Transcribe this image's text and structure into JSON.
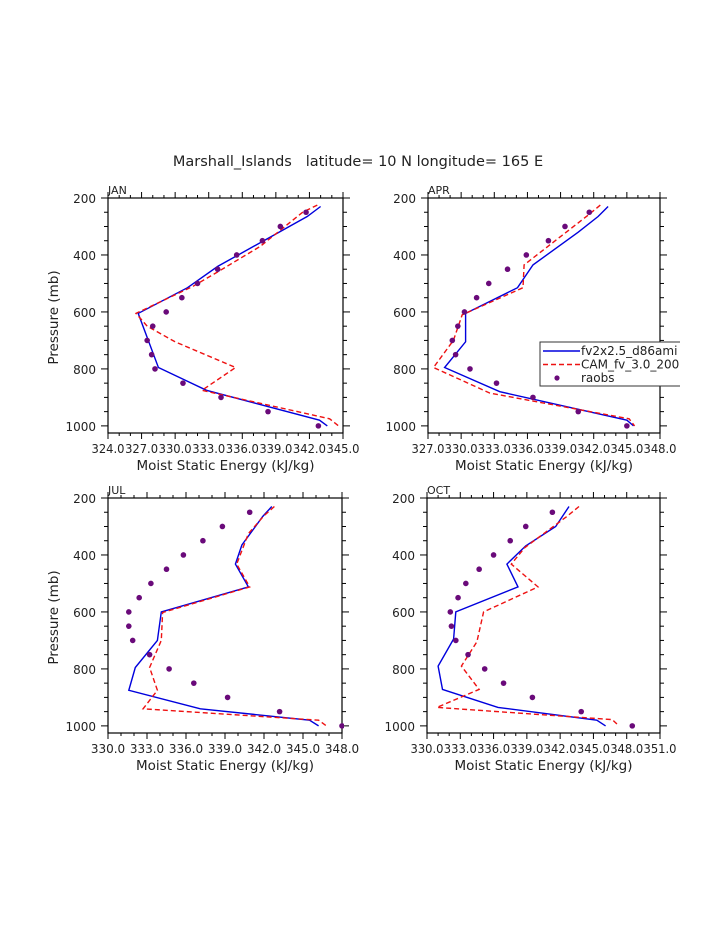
{
  "chart_data": {
    "title": "Marshall_Islands   latitude= 10 N longitude= 165 E",
    "type": "line",
    "legend": {
      "placement": "right-middle of APR panel (clipped)",
      "entries": [
        {
          "name": "fv2x2.5_d86ami",
          "style": "solid-line",
          "color": "#0000dd"
        },
        {
          "name": "CAM_fv_3.0_200",
          "style": "dashed-line",
          "color": "#ee1111"
        },
        {
          "name": "raobs",
          "style": "dot",
          "color": "#6a0a7a"
        }
      ]
    },
    "panels": [
      {
        "label": "JAN",
        "xlabel": "Moist Static Energy (kJ/kg)",
        "ylabel": "Pressure (mb)",
        "xlim": [
          324.0,
          345.0
        ],
        "ylim": [
          200,
          1025
        ],
        "y_inverted": true,
        "xticks": [
          "324.0",
          "327.0",
          "330.0",
          "333.0",
          "336.0",
          "339.0",
          "342.0",
          "345.0"
        ],
        "xtick_values": [
          324,
          327,
          330,
          333,
          336,
          339,
          342,
          345
        ],
        "xtick_text": "324.0327.0330.0333.0336.0339.0342.0345.0",
        "yticks": [
          "200",
          "400",
          "600",
          "800",
          "1000"
        ],
        "show_ylabel": true,
        "series": [
          {
            "name": "fv2x2.5_d86ami",
            "pressure": [
              230,
              265,
              440,
              515,
              605,
              795,
              875,
              980,
              1000
            ],
            "mse": [
              343.0,
              341.8,
              333.8,
              331.1,
              326.7,
              328.5,
              332.8,
              342.9,
              343.6
            ]
          },
          {
            "name": "CAM_fv_3.0_200",
            "pressure": [
              225,
              250,
              370,
              455,
              510,
              605,
              650,
              705,
              795,
              875,
              975,
              1000
            ],
            "mse": [
              342.7,
              341.4,
              337.6,
              334.0,
              331.6,
              326.5,
              327.5,
              330.0,
              335.4,
              332.4,
              343.8,
              344.6
            ]
          },
          {
            "name": "raobs",
            "pressure": [
              250,
              300,
              350,
              400,
              450,
              500,
              550,
              600,
              650,
              700,
              750,
              800,
              850,
              900,
              950,
              1000
            ],
            "mse": [
              341.7,
              339.4,
              337.8,
              335.5,
              333.8,
              332.0,
              330.6,
              329.2,
              328.0,
              327.5,
              327.9,
              328.2,
              330.7,
              334.1,
              338.3,
              342.8
            ]
          }
        ]
      },
      {
        "label": "APR",
        "xlabel": "Moist Static Energy (kJ/kg)",
        "ylabel": "",
        "xlim": [
          327.0,
          348.0
        ],
        "ylim": [
          200,
          1025
        ],
        "y_inverted": true,
        "xticks": [
          "327.0",
          "330.0",
          "333.0",
          "336.0",
          "339.0",
          "342.0",
          "345.0",
          "348.0"
        ],
        "xtick_values": [
          327,
          330,
          333,
          336,
          339,
          342,
          345,
          348
        ],
        "xtick_text": "327.0330.0333.0336.0339.0342.0345.0348.0",
        "yticks": [
          "200",
          "400",
          "600",
          "800",
          "1000"
        ],
        "show_ylabel": false,
        "series": [
          {
            "name": "fv2x2.5_d86ami",
            "pressure": [
              230,
              265,
              320,
              435,
              515,
              605,
              705,
              795,
              880,
              980,
              1000
            ],
            "mse": [
              343.3,
              342.4,
              340.6,
              336.5,
              335.1,
              330.4,
              330.4,
              328.5,
              333.5,
              345.0,
              345.6
            ]
          },
          {
            "name": "CAM_fv_3.0_200",
            "pressure": [
              225,
              260,
              435,
              515,
              610,
              700,
              795,
              885,
              975,
              1000
            ],
            "mse": [
              342.6,
              341.5,
              335.7,
              335.6,
              330.1,
              329.3,
              327.5,
              332.6,
              345.2,
              345.7
            ]
          },
          {
            "name": "raobs",
            "pressure": [
              250,
              300,
              350,
              400,
              450,
              500,
              550,
              600,
              650,
              700,
              750,
              800,
              850,
              900,
              950,
              1000
            ],
            "mse": [
              341.6,
              339.4,
              337.9,
              335.9,
              334.2,
              332.5,
              331.4,
              330.3,
              329.7,
              329.2,
              329.5,
              330.8,
              333.2,
              336.5,
              340.6,
              345.0
            ]
          }
        ]
      },
      {
        "label": "JUL",
        "xlabel": "Moist Static Energy (kJ/kg)",
        "ylabel": "Pressure (mb)",
        "xlim": [
          330.0,
          348.0
        ],
        "ylim": [
          200,
          1025
        ],
        "y_inverted": true,
        "xticks": [
          "330.0",
          "333.0",
          "336.0",
          "339.0",
          "342.0",
          "345.0",
          "348.0"
        ],
        "xtick_values": [
          330,
          333,
          336,
          339,
          342,
          345,
          348
        ],
        "xtick_text": "330.0 333.0 336.0 339.0 342.0 345.0 348.0",
        "yticks": [
          "200",
          "400",
          "600",
          "800",
          "1000"
        ],
        "show_ylabel": true,
        "series": [
          {
            "name": "fv2x2.5_d86ami",
            "pressure": [
              230,
              265,
              365,
              432,
              512,
              600,
              700,
              795,
              875,
              940,
              980,
              1000
            ],
            "mse": [
              342.6,
              341.9,
              340.3,
              339.8,
              340.8,
              334.1,
              333.8,
              332.1,
              331.6,
              337.1,
              345.5,
              346.2
            ]
          },
          {
            "name": "CAM_fv_3.0_200",
            "pressure": [
              230,
              262,
              325,
              432,
              512,
              602,
              700,
              795,
              875,
              940,
              980,
              1000
            ],
            "mse": [
              342.8,
              342.0,
              340.8,
              339.9,
              340.9,
              334.2,
              334.1,
              333.2,
              333.8,
              332.7,
              346.2,
              346.8
            ]
          },
          {
            "name": "raobs",
            "pressure": [
              250,
              300,
              350,
              400,
              450,
              500,
              550,
              600,
              650,
              700,
              750,
              800,
              850,
              900,
              950,
              1000
            ],
            "mse": [
              340.9,
              338.8,
              337.3,
              335.8,
              334.5,
              333.3,
              332.4,
              331.6,
              331.6,
              331.9,
              333.2,
              334.7,
              336.6,
              339.2,
              343.2,
              348.0
            ]
          }
        ]
      },
      {
        "label": "OCT",
        "xlabel": "Moist Static Energy (kJ/kg)",
        "ylabel": "",
        "xlim": [
          330.0,
          351.0
        ],
        "ylim": [
          200,
          1025
        ],
        "y_inverted": true,
        "xticks": [
          "330.0",
          "333.0",
          "336.0",
          "339.0",
          "342.0",
          "345.0",
          "348.0",
          "351.0"
        ],
        "xtick_values": [
          330,
          333,
          336,
          339,
          342,
          345,
          348,
          351
        ],
        "xtick_text": "330.0333.0336.0339.0342.0345.0348.0351.0",
        "yticks": [
          "200",
          "400",
          "600",
          "800",
          "1000"
        ],
        "show_ylabel": false,
        "series": [
          {
            "name": "fv2x2.5_d86ami",
            "pressure": [
              230,
              300,
              368,
              432,
              512,
              600,
              695,
              790,
              872,
              935,
              980,
              1000
            ],
            "mse": [
              342.8,
              341.6,
              338.9,
              337.2,
              338.2,
              332.6,
              332.4,
              331.0,
              331.4,
              336.4,
              345.3,
              346.1
            ]
          },
          {
            "name": "CAM_fv_3.0_200",
            "pressure": [
              230,
              265,
              375,
              432,
              512,
              600,
              705,
              790,
              872,
              935,
              978,
              1000
            ],
            "mse": [
              343.7,
              342.6,
              338.8,
              337.6,
              340.0,
              335.1,
              334.5,
              333.1,
              334.7,
              330.9,
              346.7,
              347.3
            ]
          },
          {
            "name": "raobs",
            "pressure": [
              250,
              300,
              350,
              400,
              450,
              500,
              550,
              600,
              650,
              700,
              750,
              800,
              850,
              900,
              950,
              1000
            ],
            "mse": [
              341.3,
              338.9,
              337.5,
              336.0,
              334.7,
              333.5,
              332.8,
              332.1,
              332.2,
              332.6,
              333.7,
              335.2,
              336.9,
              339.5,
              343.9,
              348.5
            ]
          }
        ]
      }
    ],
    "colors": {
      "model1": "#0000dd",
      "model2": "#ee1111",
      "raobs": "#6a0a7a",
      "axis": "#000000",
      "text": "#222222"
    }
  }
}
